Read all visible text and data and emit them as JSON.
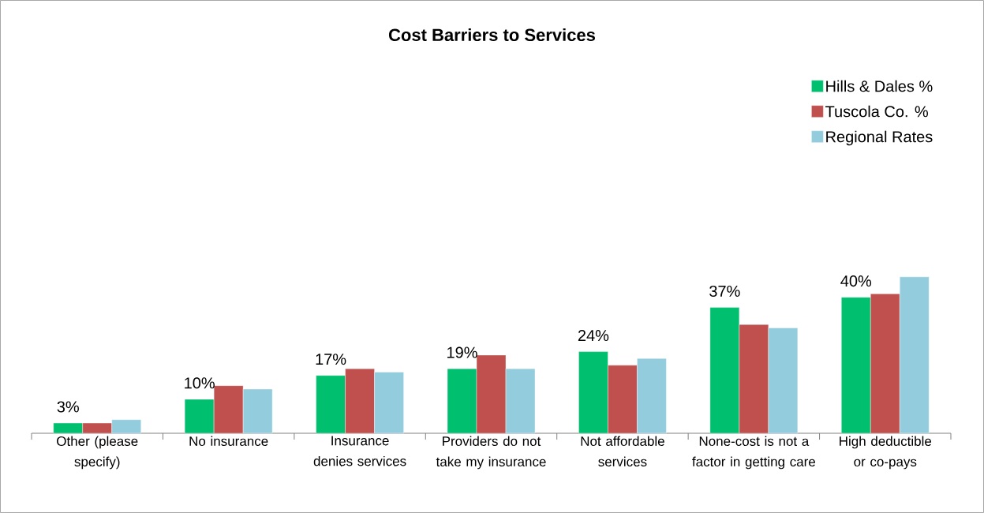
{
  "chart_data": {
    "type": "bar",
    "title": "Cost Barriers to Services",
    "categories": [
      "Other (please specify)",
      "No insurance",
      "Insurance denies services",
      "Providers do not take my insurance",
      "Not affordable services",
      "None-cost is not a factor in getting care",
      "High deductible or co-pays"
    ],
    "series": [
      {
        "name": "Hills & Dales %",
        "color": "#00bf6f",
        "values": [
          3,
          10,
          17,
          19,
          24,
          37,
          40
        ],
        "value_labels": [
          "3%",
          "10%",
          "17%",
          "19%",
          "24%",
          "37%",
          "40%"
        ]
      },
      {
        "name": "Tuscola Co. %",
        "color": "#c0504d",
        "values": [
          3,
          14,
          19,
          23,
          20,
          32,
          41
        ]
      },
      {
        "name": "Regional Rates",
        "color": "#93cddd",
        "values": [
          4,
          13,
          18,
          19,
          22,
          31,
          46
        ]
      }
    ],
    "legend": "top right"
  }
}
